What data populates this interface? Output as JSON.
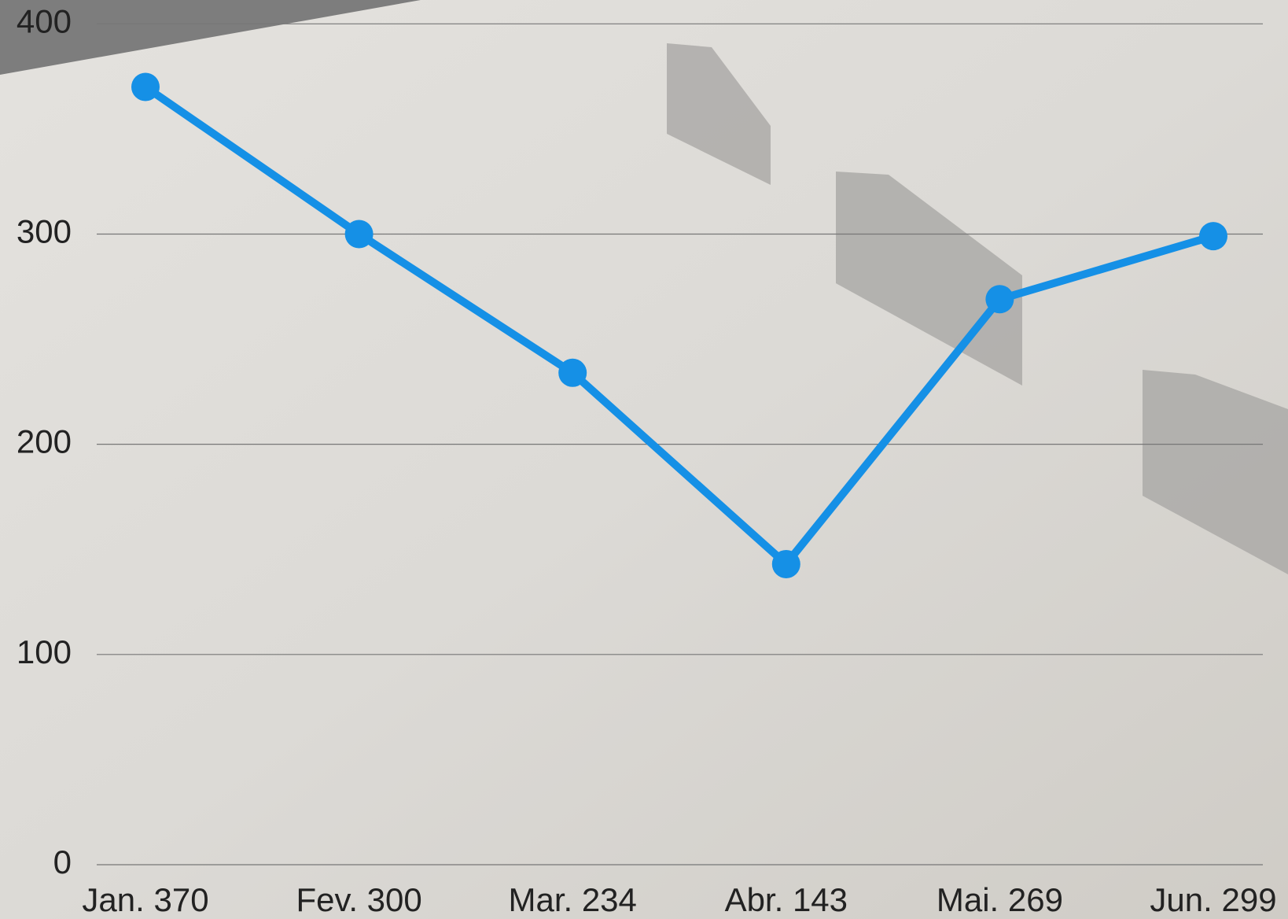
{
  "chart_data": {
    "type": "line",
    "categories": [
      "Jan. 370",
      "Fev. 300",
      "Mar. 234",
      "Abr. 143",
      "Mai. 269",
      "Jun. 299"
    ],
    "series": [
      {
        "color": "#1590e6",
        "values": [
          370,
          300,
          234,
          143,
          269,
          299
        ]
      }
    ],
    "ylim": [
      0,
      400
    ],
    "yticks": [
      0,
      100,
      200,
      300,
      400
    ],
    "grid": true
  }
}
